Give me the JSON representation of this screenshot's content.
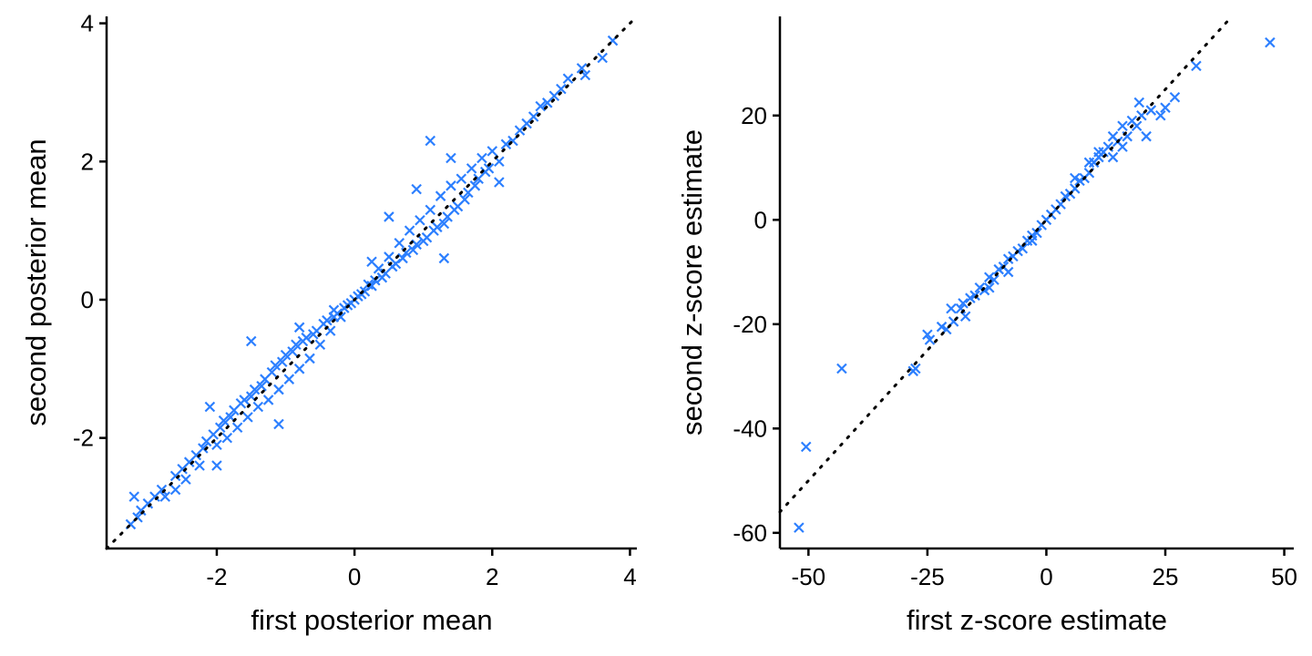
{
  "colors": {
    "points": "#2c7fff",
    "axis": "#000000",
    "reference_line": "#000000"
  },
  "chart_data": [
    {
      "type": "scatter",
      "title": "",
      "xlabel": "first posterior mean",
      "ylabel": "second posterior mean",
      "xlim": [
        -3.6,
        4.1
      ],
      "ylim": [
        -3.6,
        4.1
      ],
      "xticks": [
        -2,
        0,
        2,
        4
      ],
      "xtick_labels": [
        "-2",
        "0",
        "2",
        "4"
      ],
      "yticks": [
        -2,
        0,
        2,
        4
      ],
      "ytick_labels": [
        "-2",
        "0",
        "2",
        "4"
      ],
      "grid": false,
      "marker": "x",
      "reference_line": {
        "style": "dotted",
        "slope": 1,
        "intercept": 0
      },
      "points": [
        [
          -3.25,
          -3.25
        ],
        [
          -3.2,
          -2.85
        ],
        [
          -3.15,
          -3.15
        ],
        [
          -3.1,
          -3.05
        ],
        [
          -3.0,
          -2.95
        ],
        [
          -2.9,
          -2.85
        ],
        [
          -2.8,
          -2.75
        ],
        [
          -2.75,
          -2.85
        ],
        [
          -2.6,
          -2.55
        ],
        [
          -2.5,
          -2.45
        ],
        [
          -2.45,
          -2.6
        ],
        [
          -2.4,
          -2.35
        ],
        [
          -2.3,
          -2.25
        ],
        [
          -2.25,
          -2.4
        ],
        [
          -2.2,
          -2.15
        ],
        [
          -2.15,
          -2.05
        ],
        [
          -2.1,
          -1.55
        ],
        [
          -2.05,
          -1.95
        ],
        [
          -2.0,
          -2.1
        ],
        [
          -1.95,
          -1.85
        ],
        [
          -1.9,
          -1.75
        ],
        [
          -1.85,
          -2.0
        ],
        [
          -1.8,
          -1.7
        ],
        [
          -1.75,
          -1.6
        ],
        [
          -1.7,
          -1.85
        ],
        [
          -1.65,
          -1.5
        ],
        [
          -1.6,
          -1.45
        ],
        [
          -1.55,
          -1.7
        ],
        [
          -1.5,
          -1.4
        ],
        [
          -1.45,
          -1.3
        ],
        [
          -1.4,
          -1.55
        ],
        [
          -1.35,
          -1.25
        ],
        [
          -1.3,
          -1.15
        ],
        [
          -1.25,
          -1.45
        ],
        [
          -1.2,
          -1.05
        ],
        [
          -1.15,
          -0.95
        ],
        [
          -1.1,
          -1.3
        ],
        [
          -1.05,
          -0.9
        ],
        [
          -1.0,
          -0.8
        ],
        [
          -0.95,
          -1.15
        ],
        [
          -0.9,
          -0.75
        ],
        [
          -0.85,
          -0.65
        ],
        [
          -0.8,
          -1.0
        ],
        [
          -0.75,
          -0.6
        ],
        [
          -0.7,
          -0.55
        ],
        [
          -0.65,
          -0.85
        ],
        [
          -0.6,
          -0.5
        ],
        [
          -0.55,
          -0.45
        ],
        [
          -0.5,
          -0.65
        ],
        [
          -0.45,
          -0.35
        ],
        [
          -0.4,
          -0.3
        ],
        [
          -0.35,
          -0.45
        ],
        [
          -0.3,
          -0.25
        ],
        [
          -0.25,
          -0.2
        ],
        [
          -0.2,
          -0.25
        ],
        [
          -0.15,
          -0.12
        ],
        [
          -0.1,
          -0.08
        ],
        [
          -0.05,
          -0.05
        ],
        [
          0.0,
          0.0
        ],
        [
          0.05,
          0.05
        ],
        [
          0.1,
          0.08
        ],
        [
          0.15,
          0.12
        ],
        [
          0.2,
          0.22
        ],
        [
          0.25,
          0.2
        ],
        [
          0.3,
          0.28
        ],
        [
          0.35,
          0.45
        ],
        [
          0.4,
          0.32
        ],
        [
          0.45,
          0.38
        ],
        [
          0.5,
          0.62
        ],
        [
          0.55,
          0.48
        ],
        [
          0.6,
          0.52
        ],
        [
          0.65,
          0.82
        ],
        [
          0.7,
          0.6
        ],
        [
          0.75,
          0.68
        ],
        [
          0.8,
          1.0
        ],
        [
          0.85,
          0.72
        ],
        [
          0.9,
          0.8
        ],
        [
          0.95,
          1.15
        ],
        [
          1.0,
          0.85
        ],
        [
          1.05,
          0.9
        ],
        [
          1.1,
          1.3
        ],
        [
          1.15,
          1.0
        ],
        [
          1.2,
          1.05
        ],
        [
          1.25,
          1.5
        ],
        [
          1.3,
          1.1
        ],
        [
          1.35,
          1.2
        ],
        [
          1.4,
          1.65
        ],
        [
          1.45,
          1.3
        ],
        [
          1.5,
          1.35
        ],
        [
          1.55,
          1.75
        ],
        [
          1.6,
          1.45
        ],
        [
          1.65,
          1.55
        ],
        [
          1.7,
          1.9
        ],
        [
          1.75,
          1.65
        ],
        [
          1.8,
          1.75
        ],
        [
          1.85,
          2.05
        ],
        [
          1.9,
          1.85
        ],
        [
          1.95,
          1.9
        ],
        [
          2.0,
          2.15
        ],
        [
          2.1,
          2.0
        ],
        [
          2.2,
          2.25
        ],
        [
          2.3,
          2.3
        ],
        [
          2.4,
          2.45
        ],
        [
          2.5,
          2.55
        ],
        [
          2.6,
          2.65
        ],
        [
          2.7,
          2.8
        ],
        [
          2.8,
          2.85
        ],
        [
          2.9,
          2.95
        ],
        [
          3.0,
          3.05
        ],
        [
          3.1,
          3.2
        ],
        [
          3.3,
          3.35
        ],
        [
          3.35,
          3.25
        ],
        [
          3.6,
          3.5
        ],
        [
          3.75,
          3.75
        ],
        [
          0.5,
          1.2
        ],
        [
          1.1,
          2.3
        ],
        [
          -1.5,
          -0.6
        ],
        [
          -2.0,
          -2.4
        ],
        [
          2.1,
          1.7
        ],
        [
          1.3,
          0.6
        ],
        [
          -1.1,
          -1.8
        ],
        [
          -0.8,
          -0.4
        ],
        [
          0.9,
          1.6
        ],
        [
          -2.6,
          -2.75
        ],
        [
          1.4,
          2.05
        ],
        [
          -0.3,
          -0.15
        ],
        [
          0.25,
          0.55
        ]
      ]
    },
    {
      "type": "scatter",
      "title": "",
      "xlabel": "first z-score estimate",
      "ylabel": "second z-score estimate",
      "xlim": [
        -56,
        52
      ],
      "ylim": [
        -63,
        39
      ],
      "xticks": [
        -50,
        -25,
        0,
        25,
        50
      ],
      "xtick_labels": [
        "-50",
        "-25",
        "0",
        "25",
        "50"
      ],
      "yticks": [
        -60,
        -40,
        -20,
        0,
        20
      ],
      "ytick_labels": [
        "-60",
        "-40",
        "-20",
        "0",
        "20"
      ],
      "grid": false,
      "marker": "x",
      "reference_line": {
        "style": "dotted",
        "slope": 1,
        "intercept": 0
      },
      "points": [
        [
          -52,
          -59
        ],
        [
          -50.5,
          -43.5
        ],
        [
          -43,
          -28.5
        ],
        [
          -28,
          -29
        ],
        [
          -27.5,
          -28.5
        ],
        [
          -25,
          -22
        ],
        [
          -24.5,
          -23
        ],
        [
          -22,
          -20.5
        ],
        [
          -21,
          -21
        ],
        [
          -20,
          -17
        ],
        [
          -19.5,
          -19.5
        ],
        [
          -18,
          -17
        ],
        [
          -17.5,
          -16
        ],
        [
          -17,
          -18.5
        ],
        [
          -16,
          -15
        ],
        [
          -15,
          -14.5
        ],
        [
          -14,
          -13
        ],
        [
          -13,
          -13.5
        ],
        [
          -12,
          -11
        ],
        [
          -11,
          -11.5
        ],
        [
          -10,
          -9.5
        ],
        [
          -9,
          -9
        ],
        [
          -8,
          -7.5
        ],
        [
          -7,
          -7
        ],
        [
          -6,
          -6
        ],
        [
          -5,
          -5.5
        ],
        [
          -4,
          -4
        ],
        [
          -3,
          -3
        ],
        [
          -2,
          -2.5
        ],
        [
          -1,
          -1
        ],
        [
          0,
          0
        ],
        [
          1,
          1
        ],
        [
          2,
          2
        ],
        [
          3,
          3
        ],
        [
          4,
          4.5
        ],
        [
          5,
          5
        ],
        [
          6,
          6
        ],
        [
          7,
          7.5
        ],
        [
          8,
          8
        ],
        [
          9,
          9
        ],
        [
          10,
          11
        ],
        [
          11,
          12
        ],
        [
          12,
          13
        ],
        [
          13,
          14
        ],
        [
          14,
          16
        ],
        [
          15,
          15
        ],
        [
          16,
          18
        ],
        [
          17,
          16
        ],
        [
          18,
          19
        ],
        [
          19,
          18
        ],
        [
          19.5,
          22.5
        ],
        [
          20,
          20
        ],
        [
          21,
          16
        ],
        [
          22,
          21
        ],
        [
          24,
          20
        ],
        [
          25,
          21.5
        ],
        [
          27,
          23.5
        ],
        [
          31.5,
          29.5
        ],
        [
          47,
          34
        ],
        [
          -8,
          -10
        ],
        [
          6,
          8
        ],
        [
          -12,
          -13
        ],
        [
          14,
          12
        ],
        [
          -3,
          -4
        ],
        [
          9,
          11
        ],
        [
          16,
          14
        ],
        [
          11,
          13
        ]
      ]
    }
  ]
}
